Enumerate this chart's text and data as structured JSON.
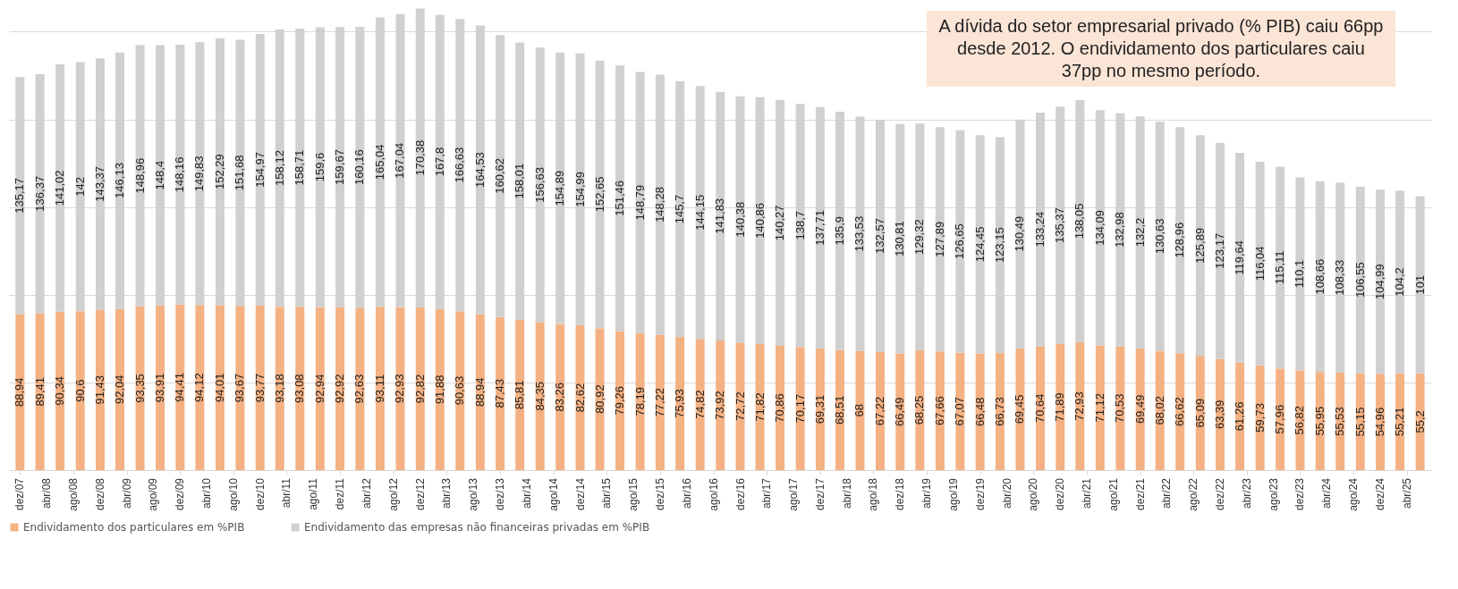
{
  "chart_data": {
    "type": "bar",
    "stacked": true,
    "grid": "y",
    "tick_labels": "x",
    "legend": "bottom",
    "annotations": [
      "A dívida do setor empresarial privado (% PIB) caiu 66pp desde 2012. O endividamento dos particulares caiu 37pp no mesmo período."
    ],
    "x": [
      "2007-12",
      "2008-03",
      "2008-06",
      "2008-09",
      "2008-12",
      "2009-03",
      "2009-06",
      "2009-09",
      "2009-12",
      "2010-03",
      "2010-06",
      "2010-09",
      "2010-12",
      "2011-03",
      "2011-06",
      "2011-09",
      "2011-12",
      "2012-03",
      "2012-06",
      "2012-09",
      "2012-12",
      "2013-03",
      "2013-06",
      "2013-09",
      "2013-12",
      "2014-03",
      "2014-06",
      "2014-09",
      "2014-12",
      "2015-03",
      "2015-06",
      "2015-09",
      "2015-12",
      "2016-03",
      "2016-06",
      "2016-09",
      "2016-12",
      "2017-03",
      "2017-06",
      "2017-09",
      "2017-12",
      "2018-03",
      "2018-06",
      "2018-09",
      "2018-12",
      "2019-03",
      "2019-06",
      "2019-09",
      "2019-12",
      "2020-03",
      "2020-06",
      "2020-09",
      "2020-12",
      "2021-03",
      "2021-06",
      "2021-09",
      "2021-12",
      "2022-03",
      "2022-06",
      "2022-09",
      "2022-12",
      "2023-03",
      "2023-06",
      "2023-09",
      "2023-12",
      "2024-03",
      "2024-06",
      "2024-09",
      "2024-12",
      "2025-03",
      "2025-06"
    ],
    "xlim": [
      "2007-11",
      "2025-07"
    ],
    "xticks": [
      {
        "value": "2007-12",
        "label": "dez/07"
      },
      {
        "value": "2008-04",
        "label": "abr/08"
      },
      {
        "value": "2008-08",
        "label": "ago/08"
      },
      {
        "value": "2008-12",
        "label": "dez/08"
      },
      {
        "value": "2009-04",
        "label": "abr/09"
      },
      {
        "value": "2009-08",
        "label": "ago/09"
      },
      {
        "value": "2009-12",
        "label": "dez/09"
      },
      {
        "value": "2010-04",
        "label": "abr/10"
      },
      {
        "value": "2010-08",
        "label": "ago/10"
      },
      {
        "value": "2010-12",
        "label": "dez/10"
      },
      {
        "value": "2011-04",
        "label": "abr/11"
      },
      {
        "value": "2011-08",
        "label": "ago/11"
      },
      {
        "value": "2011-12",
        "label": "dez/11"
      },
      {
        "value": "2012-04",
        "label": "abr/12"
      },
      {
        "value": "2012-08",
        "label": "ago/12"
      },
      {
        "value": "2012-12",
        "label": "dez/12"
      },
      {
        "value": "2013-04",
        "label": "abr/13"
      },
      {
        "value": "2013-08",
        "label": "ago/13"
      },
      {
        "value": "2013-12",
        "label": "dez/13"
      },
      {
        "value": "2014-04",
        "label": "abr/14"
      },
      {
        "value": "2014-08",
        "label": "ago/14"
      },
      {
        "value": "2014-12",
        "label": "dez/14"
      },
      {
        "value": "2015-04",
        "label": "abr/15"
      },
      {
        "value": "2015-08",
        "label": "ago/15"
      },
      {
        "value": "2015-12",
        "label": "dez/15"
      },
      {
        "value": "2016-04",
        "label": "abr/16"
      },
      {
        "value": "2016-08",
        "label": "ago/16"
      },
      {
        "value": "2016-12",
        "label": "dez/16"
      },
      {
        "value": "2017-04",
        "label": "abr/17"
      },
      {
        "value": "2017-08",
        "label": "ago/17"
      },
      {
        "value": "2017-12",
        "label": "dez/17"
      },
      {
        "value": "2018-04",
        "label": "abr/18"
      },
      {
        "value": "2018-08",
        "label": "ago/18"
      },
      {
        "value": "2018-12",
        "label": "dez/18"
      },
      {
        "value": "2019-04",
        "label": "abr/19"
      },
      {
        "value": "2019-08",
        "label": "ago/19"
      },
      {
        "value": "2019-12",
        "label": "dez/19"
      },
      {
        "value": "2020-04",
        "label": "abr/20"
      },
      {
        "value": "2020-08",
        "label": "ago/20"
      },
      {
        "value": "2020-12",
        "label": "dez/20"
      },
      {
        "value": "2021-04",
        "label": "abr/21"
      },
      {
        "value": "2021-08",
        "label": "ago/21"
      },
      {
        "value": "2021-12",
        "label": "dez/21"
      },
      {
        "value": "2022-04",
        "label": "abr/22"
      },
      {
        "value": "2022-08",
        "label": "ago/22"
      },
      {
        "value": "2022-12",
        "label": "dez/22"
      },
      {
        "value": "2023-04",
        "label": "abr/23"
      },
      {
        "value": "2023-08",
        "label": "ago/23"
      },
      {
        "value": "2023-12",
        "label": "dez/23"
      },
      {
        "value": "2024-04",
        "label": "abr/24"
      },
      {
        "value": "2024-08",
        "label": "ago/24"
      },
      {
        "value": "2024-12",
        "label": "dez/24"
      },
      {
        "value": "2025-04",
        "label": "abr/25"
      }
    ],
    "ylim": [
      0,
      265
    ],
    "yticks": [
      {
        "value": 0,
        "label": null
      },
      {
        "value": 50,
        "label": null
      },
      {
        "value": 100,
        "label": null
      },
      {
        "value": 150,
        "label": null
      },
      {
        "value": 200,
        "label": null
      },
      {
        "value": 250,
        "label": null
      }
    ],
    "series": [
      {
        "name": "Endividamento dos particulares em %PIB",
        "color": "#f4b183",
        "values": [
          88.94,
          89.41,
          90.34,
          90.6,
          91.43,
          92.04,
          93.35,
          93.91,
          94.41,
          94.12,
          94.01,
          93.67,
          93.77,
          93.18,
          93.08,
          92.94,
          92.92,
          92.63,
          93.11,
          92.93,
          92.82,
          91.88,
          90.63,
          88.94,
          87.43,
          85.81,
          84.35,
          83.26,
          82.62,
          80.92,
          79.26,
          78.19,
          77.22,
          75.93,
          74.82,
          73.92,
          72.72,
          71.82,
          70.86,
          70.17,
          69.31,
          68.51,
          68,
          67.22,
          66.49,
          68.25,
          67.66,
          67.07,
          66.48,
          66.73,
          69.45,
          70.64,
          71.89,
          72.93,
          71.12,
          70.53,
          69.49,
          68.02,
          66.62,
          65.09,
          63.39,
          61.26,
          59.73,
          57.96,
          56.82,
          55.95,
          55.53,
          55.15,
          54.96,
          55.21,
          55.2
        ],
        "value_labels": [
          "88,94",
          "89,41",
          "90,34",
          "90,6",
          "91,43",
          "92,04",
          "93,35",
          "93,91",
          "94,41",
          "94,12",
          "94,01",
          "93,67",
          "93,77",
          "93,18",
          "93,08",
          "92,94",
          "92,92",
          "92,63",
          "93,11",
          "92,93",
          "92,82",
          "91,88",
          "90,63",
          "88,94",
          "87,43",
          "85,81",
          "84,35",
          "83,26",
          "82,62",
          "80,92",
          "79,26",
          "78,19",
          "77,22",
          "75,93",
          "74,82",
          "73,92",
          "72,72",
          "71,82",
          "70,86",
          "70,17",
          "69,31",
          "68,51",
          "68",
          "67,22",
          "66,49",
          "68,25",
          "67,66",
          "67,07",
          "66,48",
          "66,73",
          "69,45",
          "70,64",
          "71,89",
          "72,93",
          "71,12",
          "70,53",
          "69,49",
          "68,02",
          "66,62",
          "65,09",
          "63,39",
          "61,26",
          "59,73",
          "57,96",
          "56,82",
          "55,95",
          "55,53",
          "55,15",
          "54,96",
          "55,21",
          "55,2"
        ]
      },
      {
        "name": "Endividamento das empresas não financeiras privadas em %PIB",
        "color": "#d0d0d0",
        "values": [
          135.17,
          136.37,
          141.02,
          142,
          143.37,
          146.13,
          148.96,
          148.4,
          148.16,
          149.83,
          152.29,
          151.68,
          154.97,
          158.12,
          158.71,
          159.6,
          159.67,
          160.16,
          165.04,
          167.04,
          170.38,
          167.8,
          166.63,
          164.53,
          160.62,
          158.01,
          156.63,
          154.89,
          154.99,
          152.65,
          151.46,
          148.79,
          148.28,
          145.7,
          144.15,
          141.83,
          140.38,
          140.86,
          140.27,
          138.7,
          137.71,
          135.9,
          133.53,
          132.57,
          130.81,
          129.32,
          127.89,
          126.65,
          124.45,
          123.15,
          130.49,
          133.24,
          135.37,
          138.05,
          134.09,
          132.98,
          132.2,
          130.63,
          128.96,
          125.89,
          123.17,
          119.64,
          116.04,
          115.11,
          110.1,
          108.66,
          108.33,
          106.55,
          104.99,
          104.2,
          101
        ],
        "value_labels": [
          "135,17",
          "136,37",
          "141,02",
          "142",
          "143,37",
          "146,13",
          "148,96",
          "148,4",
          "148,16",
          "149,83",
          "152,29",
          "151,68",
          "154,97",
          "158,12",
          "158,71",
          "159,6",
          "159,67",
          "160,16",
          "165,04",
          "167,04",
          "170,38",
          "167,8",
          "166,63",
          "164,53",
          "160,62",
          "158,01",
          "156,63",
          "154,89",
          "154,99",
          "152,65",
          "151,46",
          "148,79",
          "148,28",
          "145,7",
          "144,15",
          "141,83",
          "140,38",
          "140,86",
          "140,27",
          "138,7",
          "137,71",
          "135,9",
          "133,53",
          "132,57",
          "130,81",
          "129,32",
          "127,89",
          "126,65",
          "124,45",
          "123,15",
          "130,49",
          "133,24",
          "135,37",
          "138,05",
          "134,09",
          "132,98",
          "132,2",
          "130,63",
          "128,96",
          "125,89",
          "123,17",
          "119,64",
          "116,04",
          "115,11",
          "110,1",
          "108,66",
          "108,33",
          "106,55",
          "104,99",
          "104,2",
          "101"
        ]
      }
    ]
  }
}
